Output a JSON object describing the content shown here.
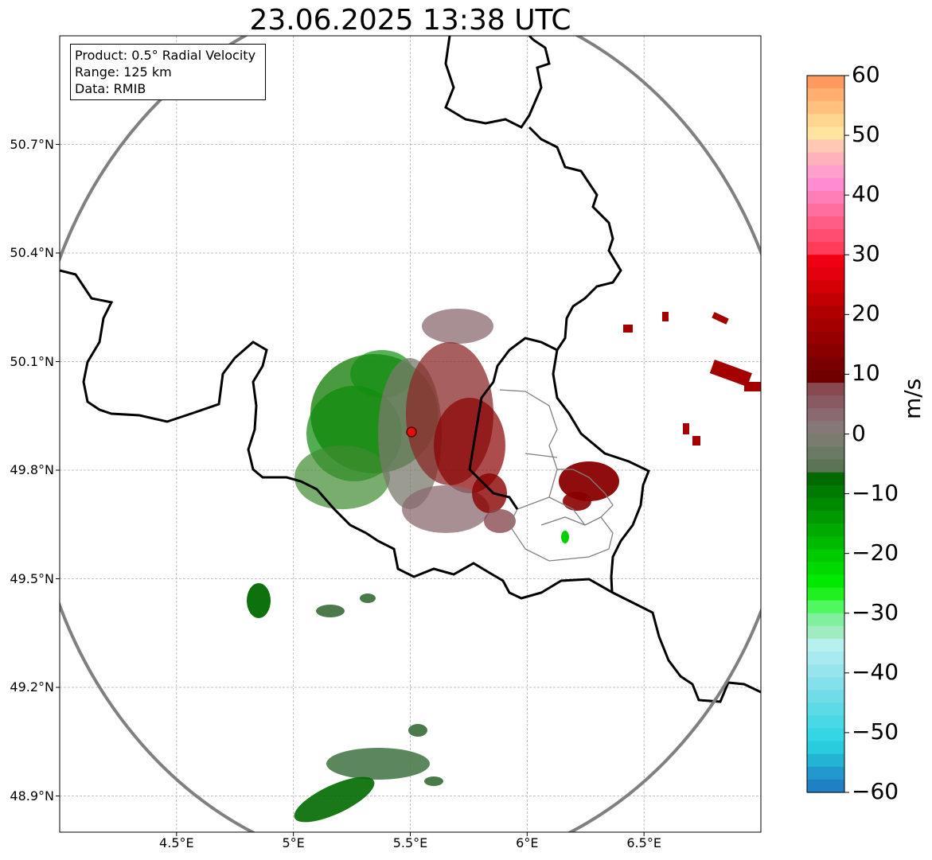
{
  "title": "23.06.2025 13:38 UTC",
  "info_box": {
    "product": "Product: 0.5° Radial Velocity",
    "range": "Range: 125 km",
    "data": "Data: RMIB"
  },
  "map": {
    "lon_range": [
      4.0,
      7.0
    ],
    "lat_range": [
      48.8,
      51.0
    ],
    "radar_site": {
      "lon": 5.505,
      "lat": 49.915
    },
    "range_ring_km": 125,
    "x_ticks": [
      "4.5°E",
      "5°E",
      "5.5°E",
      "6°E",
      "6.5°E"
    ],
    "x_tick_values": [
      4.5,
      5.0,
      5.5,
      6.0,
      6.5
    ],
    "y_ticks": [
      "48.9°N",
      "49.2°N",
      "49.5°N",
      "49.8°N",
      "50.1°N",
      "50.4°N",
      "50.7°N"
    ],
    "y_tick_values": [
      48.9,
      49.2,
      49.5,
      49.8,
      50.1,
      50.4,
      50.7
    ],
    "grid": true
  },
  "colorbar": {
    "label": "m/s",
    "ticks": [
      "60",
      "50",
      "40",
      "30",
      "20",
      "10",
      "0",
      "−10",
      "−20",
      "−30",
      "−40",
      "−50",
      "−60"
    ],
    "range": [
      -60,
      60
    ],
    "colors": [
      "#ff9a5e",
      "#ffb070",
      "#ffc27e",
      "#ffd690",
      "#ffe4a0",
      "#ffc8b4",
      "#ffb2bc",
      "#ff9fcc",
      "#ff8cd2",
      "#ff7eb8",
      "#ff6e9e",
      "#ff5d86",
      "#ff4c70",
      "#ff3d5a",
      "#f00010",
      "#e4000c",
      "#d40008",
      "#c20004",
      "#b00000",
      "#a40000",
      "#960000",
      "#880000",
      "#7a0000",
      "#700000",
      "#884a50",
      "#8a5a62",
      "#8a6a70",
      "#867878",
      "#7a7c70",
      "#6a7a64",
      "#5a7454",
      "#006a00",
      "#007a00",
      "#008a00",
      "#009a00",
      "#00aa00",
      "#00ba00",
      "#00ca00",
      "#00da00",
      "#00ea00",
      "#20f020",
      "#50f860",
      "#80f0a0",
      "#a0ecc0",
      "#b8f0f0",
      "#a8eaf0",
      "#96e4ee",
      "#84e0ea",
      "#70dce8",
      "#5cdae6",
      "#48d8e6",
      "#34d6e4",
      "#28ccdc",
      "#22b4d2",
      "#2298cc",
      "#2080c4"
    ]
  }
}
